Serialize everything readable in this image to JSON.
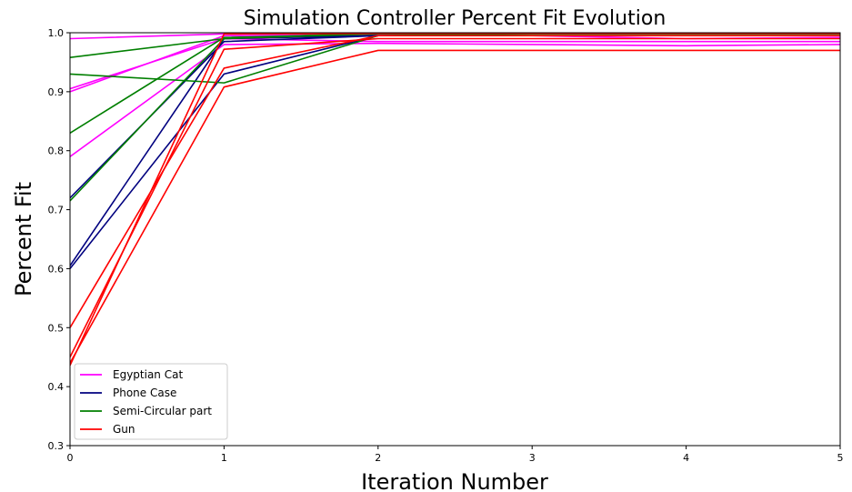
{
  "chart_data": {
    "type": "line",
    "title": "Simulation Controller Percent Fit Evolution",
    "xlabel": "Iteration Number",
    "ylabel": "Percent Fit",
    "xlim": [
      0,
      5
    ],
    "ylim": [
      0.3,
      1.0
    ],
    "x_ticks": [
      0,
      1,
      2,
      3,
      4,
      5
    ],
    "y_ticks": [
      0.3,
      0.4,
      0.5,
      0.6,
      0.7,
      0.8,
      0.9,
      1.0
    ],
    "x_tick_labels": [
      "0",
      "1",
      "2",
      "3",
      "4",
      "5"
    ],
    "y_tick_labels": [
      "0.3",
      "0.4",
      "0.5",
      "0.6",
      "0.7",
      "0.8",
      "0.9",
      "1.0"
    ],
    "grid": false,
    "legend_position": "lower-left",
    "x": [
      0,
      1,
      2,
      3,
      4,
      5
    ],
    "groups": [
      {
        "name": "Egyptian Cat",
        "color": "#ff00ff",
        "lines": [
          [
            0.99,
            0.998,
            0.998,
            0.998,
            0.998,
            0.998
          ],
          [
            0.905,
            0.99,
            0.985,
            0.985,
            0.985,
            0.985
          ],
          [
            0.79,
            0.98,
            0.982,
            0.98,
            0.978,
            0.98
          ],
          [
            0.9,
            0.995,
            0.996,
            0.995,
            0.99,
            0.992
          ]
        ]
      },
      {
        "name": "Phone Case",
        "color": "#00007f",
        "lines": [
          [
            0.72,
            0.985,
            0.995,
            0.995,
            0.995,
            0.995
          ],
          [
            0.6,
            0.93,
            0.995,
            0.995,
            0.995,
            0.995
          ],
          [
            0.605,
            0.99,
            0.995,
            0.995,
            0.995,
            0.995
          ]
        ]
      },
      {
        "name": "Semi-Circular part",
        "color": "#007f00",
        "lines": [
          [
            0.958,
            0.99,
            1.0,
            1.0,
            1.0,
            1.0
          ],
          [
            0.93,
            0.915,
            0.995,
            0.998,
            0.998,
            0.998
          ],
          [
            0.83,
            0.992,
            0.998,
            0.998,
            0.998,
            0.998
          ],
          [
            0.715,
            0.99,
            0.998,
            0.998,
            0.998,
            0.998
          ]
        ]
      },
      {
        "name": "Gun",
        "color": "#ff0000",
        "lines": [
          [
            0.5,
            0.94,
            0.995,
            0.995,
            0.995,
            0.995
          ],
          [
            0.45,
            0.972,
            0.99,
            0.99,
            0.99,
            0.99
          ],
          [
            0.44,
            0.908,
            0.97,
            0.97,
            0.97,
            0.97
          ],
          [
            0.436,
            0.998,
            0.999,
            0.999,
            0.999,
            0.999
          ]
        ]
      }
    ]
  }
}
